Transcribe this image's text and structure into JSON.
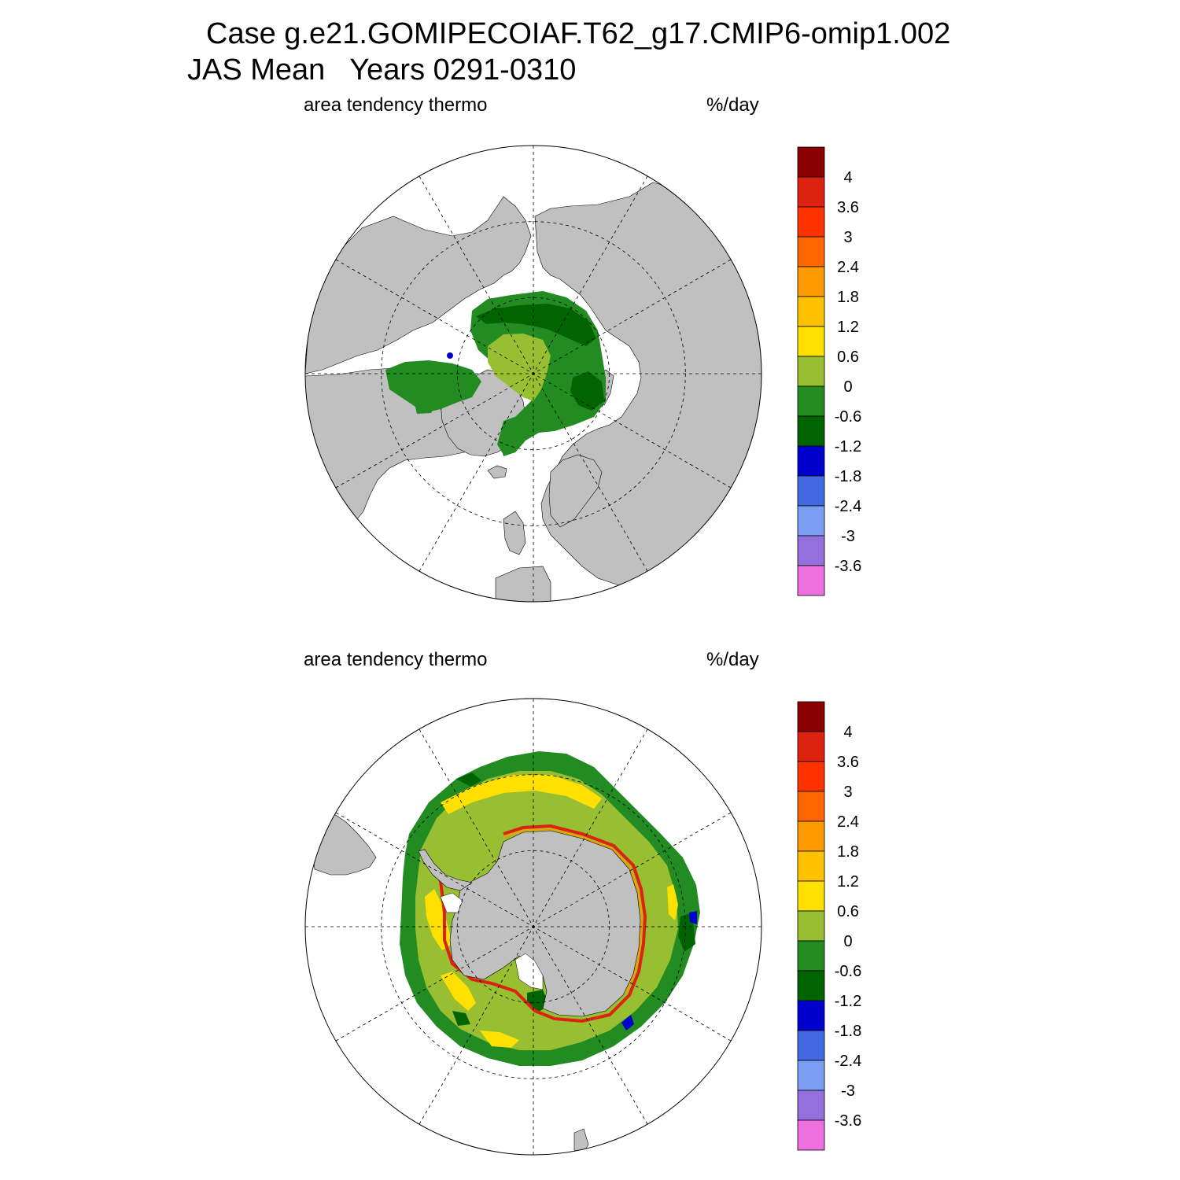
{
  "title": {
    "line1": "Case g.e21.GOMIPECOIAF.T62_g17.CMIP6-omip1.002",
    "line2": "JAS Mean   Years 0291-0310"
  },
  "panels": [
    {
      "id": "north",
      "left_label": "area tendency thermo",
      "right_label": "%/day"
    },
    {
      "id": "south",
      "left_label": "area tendency thermo",
      "right_label": "%/day"
    }
  ],
  "colorbar": {
    "colors": [
      "#8b0000",
      "#dd2211",
      "#ff3300",
      "#ff6600",
      "#ff9900",
      "#ffc200",
      "#ffe000",
      "#98bf32",
      "#228b22",
      "#006400",
      "#0000cd",
      "#4169e1",
      "#7b9ef5",
      "#9370db",
      "#ee6fde"
    ],
    "labels": [
      "4",
      "3.6",
      "3",
      "2.4",
      "1.8",
      "1.2",
      "0.6",
      "0",
      "-0.6",
      "-1.2",
      "-1.8",
      "-2.4",
      "-3",
      "-3.6"
    ]
  },
  "colors": {
    "land": "#c0c0c0",
    "ocean": "#ffffff",
    "grid_line": "#000000"
  }
}
